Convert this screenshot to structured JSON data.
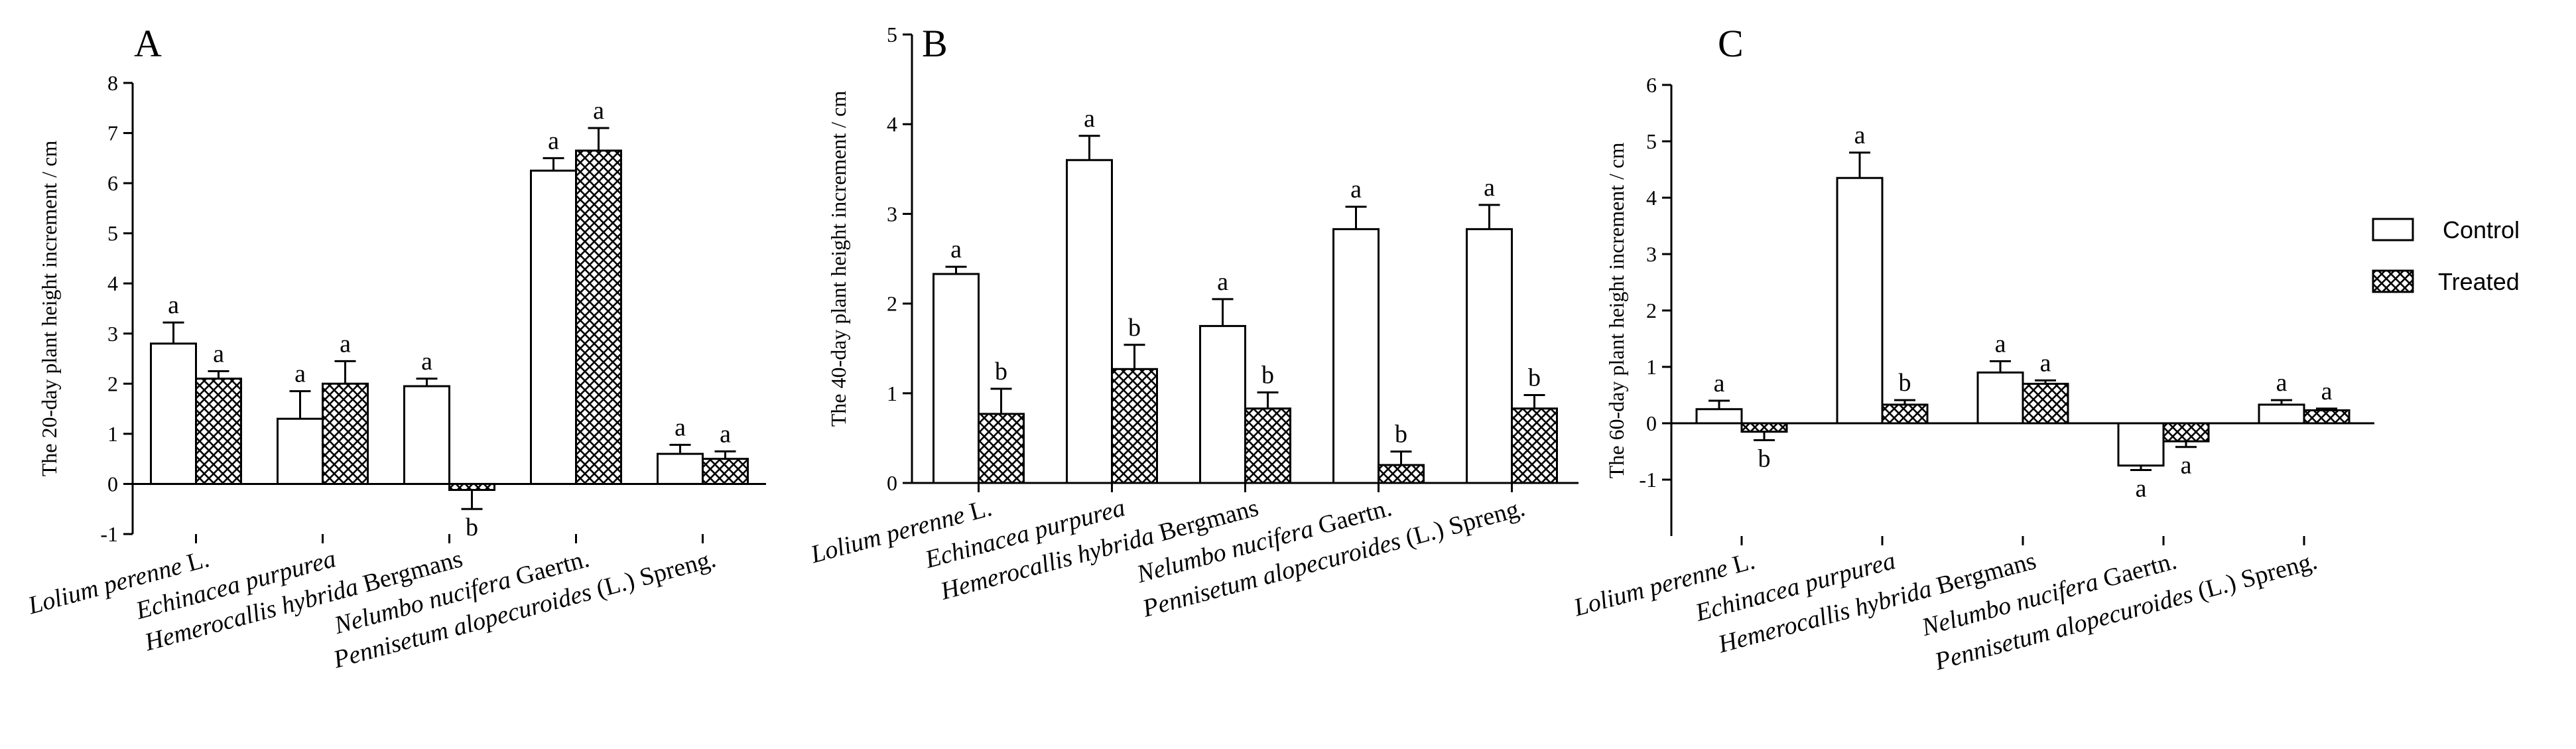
{
  "colors": {
    "control_fill": "#ffffff",
    "treated_fill": "hatch-cross",
    "stroke": "#000000"
  },
  "legend": {
    "control_label": "Control",
    "treated_label": "Treated"
  },
  "chart_data": [
    {
      "type": "bar",
      "panel": "A",
      "ylabel": "The 20-day plant height increment / cm",
      "ylim": [
        -1,
        8
      ],
      "yticks": [
        -1,
        0,
        1,
        2,
        3,
        4,
        5,
        6,
        7,
        8
      ],
      "categories": [
        {
          "genus": "Lolium perenne",
          "suffix": " L."
        },
        {
          "genus": "Echinacea purpurea",
          "suffix": ""
        },
        {
          "genus": "Hemerocallis hybrida",
          "suffix": " Bergmans"
        },
        {
          "genus": "Nelumbo nucifera",
          "suffix": " Gaertn."
        },
        {
          "genus": "Pennisetum alopecuroides",
          "suffix": " (L.) Spreng."
        }
      ],
      "series": [
        {
          "name": "Control",
          "values": [
            2.8,
            1.3,
            1.95,
            6.25,
            0.6
          ],
          "errors": [
            0.42,
            0.55,
            0.15,
            0.25,
            0.18
          ],
          "sig": [
            "a",
            "a",
            "a",
            "a",
            "a"
          ]
        },
        {
          "name": "Treated",
          "values": [
            2.1,
            2.0,
            -0.12,
            6.65,
            0.5
          ],
          "errors": [
            0.15,
            0.45,
            0.38,
            0.45,
            0.15
          ],
          "sig": [
            "a",
            "a",
            "b",
            "a",
            "a"
          ]
        }
      ]
    },
    {
      "type": "bar",
      "panel": "B",
      "ylabel": "The 40-day plant height increment / cm",
      "ylim": [
        0,
        5
      ],
      "yticks": [
        0,
        1,
        2,
        3,
        4,
        5
      ],
      "categories": [
        {
          "genus": "Lolium perenne",
          "suffix": " L."
        },
        {
          "genus": "Echinacea purpurea",
          "suffix": ""
        },
        {
          "genus": "Hemerocallis hybrida",
          "suffix": " Bergmans"
        },
        {
          "genus": "Nelumbo nucifera",
          "suffix": " Gaertn."
        },
        {
          "genus": "Pennisetum alopecuroides",
          "suffix": " (L.) Spreng."
        }
      ],
      "series": [
        {
          "name": "Control",
          "values": [
            2.33,
            3.6,
            1.75,
            2.83,
            2.83
          ],
          "errors": [
            0.08,
            0.27,
            0.3,
            0.25,
            0.27
          ],
          "sig": [
            "a",
            "a",
            "a",
            "a",
            "a"
          ]
        },
        {
          "name": "Treated",
          "values": [
            0.77,
            1.27,
            0.83,
            0.2,
            0.83
          ],
          "errors": [
            0.28,
            0.27,
            0.18,
            0.15,
            0.15
          ],
          "sig": [
            "b",
            "b",
            "b",
            "b",
            "b"
          ]
        }
      ]
    },
    {
      "type": "bar",
      "panel": "C",
      "ylabel": "The 60-day plant height increment / cm",
      "ylim": [
        -2,
        6
      ],
      "yticks": [
        -1,
        0,
        1,
        2,
        3,
        4,
        5,
        6
      ],
      "categories": [
        {
          "genus": "Lolium perenne",
          "suffix": " L."
        },
        {
          "genus": "Echinacea purpurea",
          "suffix": ""
        },
        {
          "genus": "Hemerocallis hybrida",
          "suffix": " Bergmans"
        },
        {
          "genus": "Nelumbo nucifera",
          "suffix": " Gaertn."
        },
        {
          "genus": "Pennisetum alopecuroides",
          "suffix": " (L.) Spreng."
        }
      ],
      "series": [
        {
          "name": "Control",
          "values": [
            0.25,
            4.35,
            0.9,
            -0.75,
            0.33
          ],
          "errors": [
            0.15,
            0.45,
            0.2,
            0.08,
            0.08
          ],
          "sig": [
            "a",
            "a",
            "a",
            "a",
            "a"
          ]
        },
        {
          "name": "Treated",
          "values": [
            -0.15,
            0.33,
            0.7,
            -0.32,
            0.23
          ],
          "errors": [
            0.15,
            0.08,
            0.06,
            0.1,
            0.03
          ],
          "sig": [
            "b",
            "b",
            "a",
            "a",
            "a"
          ]
        }
      ]
    }
  ]
}
